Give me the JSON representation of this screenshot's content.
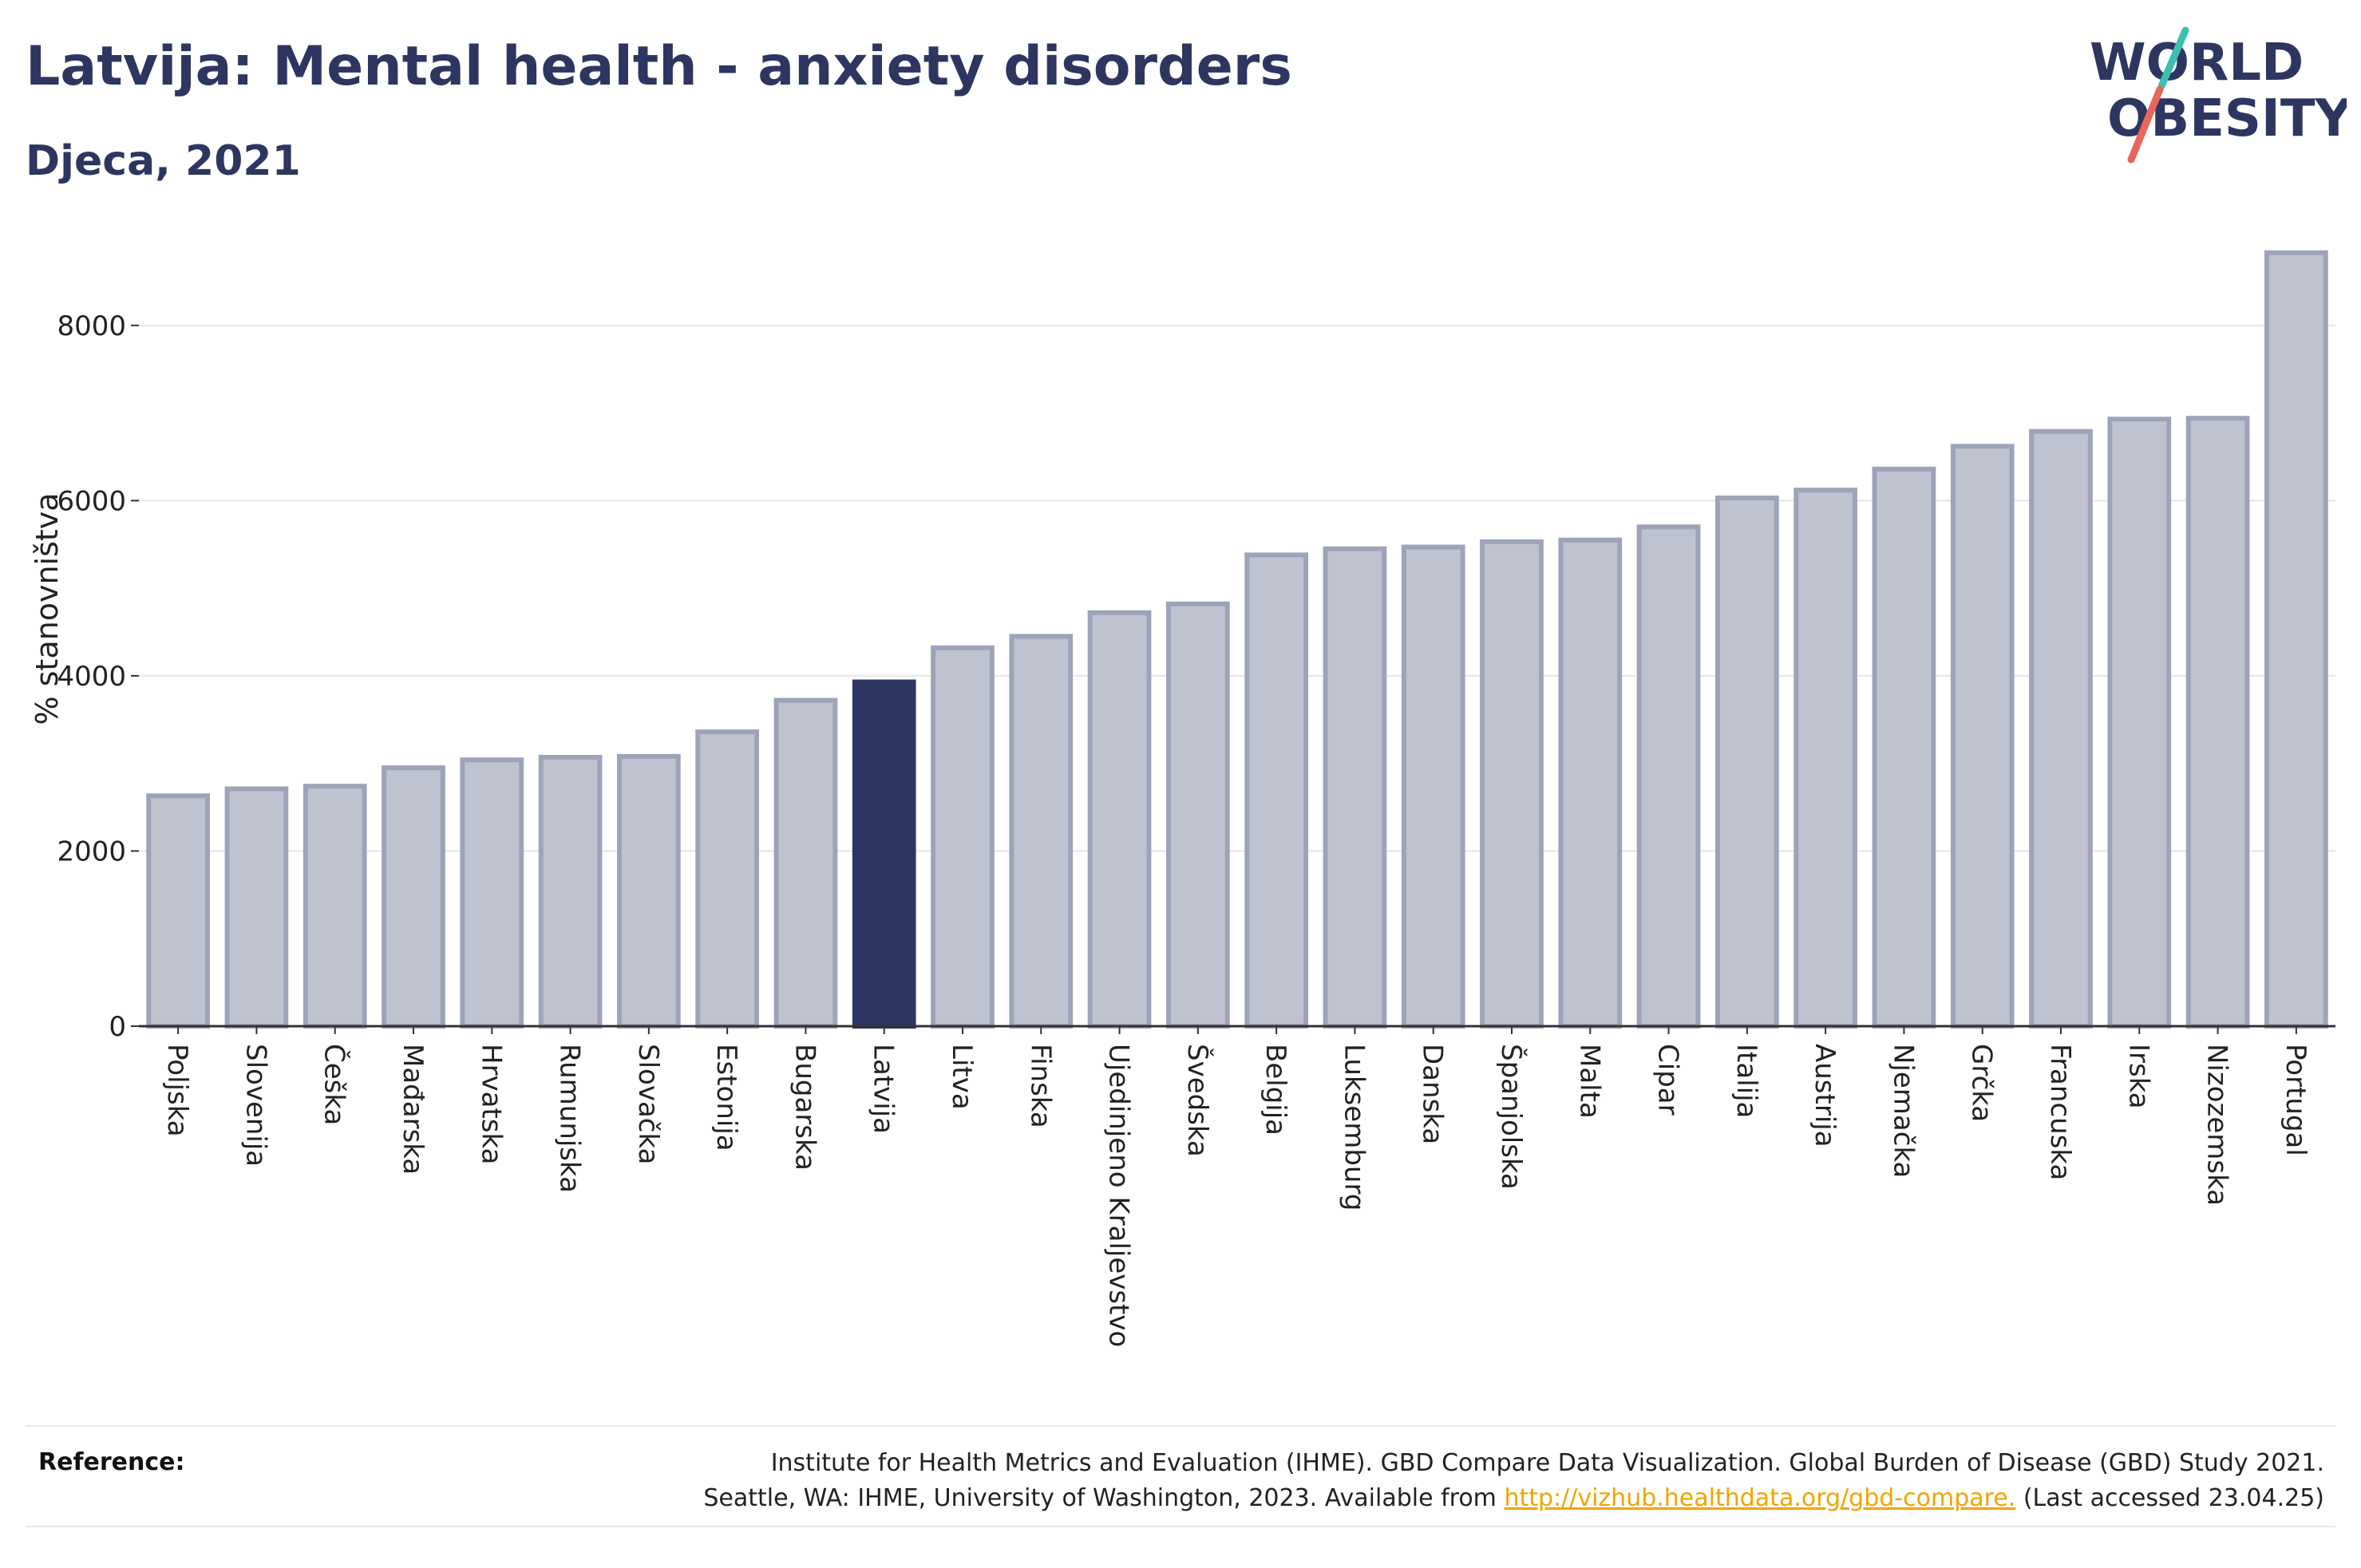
{
  "header": {
    "title": "Latvija: Mental health - anxiety disorders",
    "subtitle": "Djeca, 2021"
  },
  "logo": {
    "line1": "WORLD",
    "line2": "OBESITY",
    "colors": {
      "text": "#2d3660",
      "slash_top": "#3bbfb0",
      "slash_bottom": "#e8665a"
    }
  },
  "colors": {
    "bar": "#bfc3d0",
    "bar_border": "#9da3b8",
    "highlight": "#2d3660",
    "grid": "#e6e6e6",
    "axis": "#333333"
  },
  "chart_data": {
    "type": "bar",
    "title": "Latvija: Mental health - anxiety disorders",
    "subtitle": "Djeca, 2021",
    "ylabel": "% stanovništva",
    "xlabel": "",
    "ylim": [
      0,
      8800
    ],
    "yticks": [
      0,
      2000,
      4000,
      6000,
      8000
    ],
    "grid": true,
    "highlight": "Latvija",
    "categories": [
      "Poljska",
      "Slovenija",
      "Češka",
      "Mađarska",
      "Hrvatska",
      "Rumunjska",
      "Slovačka",
      "Estonija",
      "Bugarska",
      "Latvija",
      "Litva",
      "Finska",
      "Ujedinjeno Kraljevstvo",
      "Švedska",
      "Belgija",
      "Luksemburg",
      "Danska",
      "Španjolska",
      "Malta",
      "Cipar",
      "Italija",
      "Austrija",
      "Njemačka",
      "Grčka",
      "Francuska",
      "Irska",
      "Nizozemska",
      "Portugal"
    ],
    "values": [
      2630,
      2710,
      2740,
      2950,
      3040,
      3070,
      3080,
      3360,
      3720,
      3930,
      4320,
      4450,
      4720,
      4820,
      5380,
      5450,
      5470,
      5530,
      5550,
      5700,
      6030,
      6120,
      6360,
      6620,
      6790,
      6930,
      6940,
      8830
    ]
  },
  "footer": {
    "reference_label": "Reference:",
    "reference_line1": "Institute for Health Metrics and Evaluation (IHME). GBD Compare Data Visualization. Global Burden of Disease (GBD) Study 2021.",
    "reference_line2_prefix": "Seattle, WA: IHME, University of Washington, 2023. Available from ",
    "reference_link": "http://vizhub.healthdata.org/gbd-compare.",
    "reference_line2_suffix": " (Last accessed 23.04.25)"
  }
}
